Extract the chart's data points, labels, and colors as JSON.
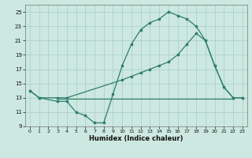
{
  "xlabel": "Humidex (Indice chaleur)",
  "xlim": [
    -0.5,
    23.5
  ],
  "ylim": [
    9,
    26
  ],
  "yticks": [
    9,
    11,
    13,
    15,
    17,
    19,
    21,
    23,
    25
  ],
  "xticks": [
    0,
    1,
    2,
    3,
    4,
    5,
    6,
    7,
    8,
    9,
    10,
    11,
    12,
    13,
    14,
    15,
    16,
    17,
    18,
    19,
    20,
    21,
    22,
    23
  ],
  "bg_color": "#cce8e0",
  "line_color": "#2e7d6e",
  "curve1_x": [
    0,
    1,
    3,
    4,
    5,
    6,
    7,
    8,
    9,
    10,
    11,
    12,
    13,
    14,
    15,
    16,
    17,
    18,
    19,
    20,
    21,
    22,
    23
  ],
  "curve1_y": [
    14.0,
    13.0,
    12.5,
    12.5,
    11.0,
    10.5,
    9.5,
    9.5,
    13.5,
    17.5,
    20.5,
    22.5,
    23.5,
    24.0,
    25.0,
    24.5,
    24.0,
    23.0,
    21.0,
    17.5,
    14.5,
    13.0,
    13.0
  ],
  "curve2_x": [
    0,
    1,
    3,
    4,
    10,
    11,
    12,
    13,
    14,
    15,
    16,
    17,
    18,
    19,
    20,
    21,
    22,
    23
  ],
  "curve2_y": [
    14.0,
    13.0,
    13.0,
    13.0,
    15.5,
    16.0,
    16.5,
    17.0,
    17.5,
    18.0,
    19.0,
    20.5,
    22.0,
    21.0,
    17.5,
    14.5,
    13.0,
    13.0
  ],
  "hline_x": [
    3,
    22
  ],
  "hline_y": [
    12.9,
    12.9
  ]
}
